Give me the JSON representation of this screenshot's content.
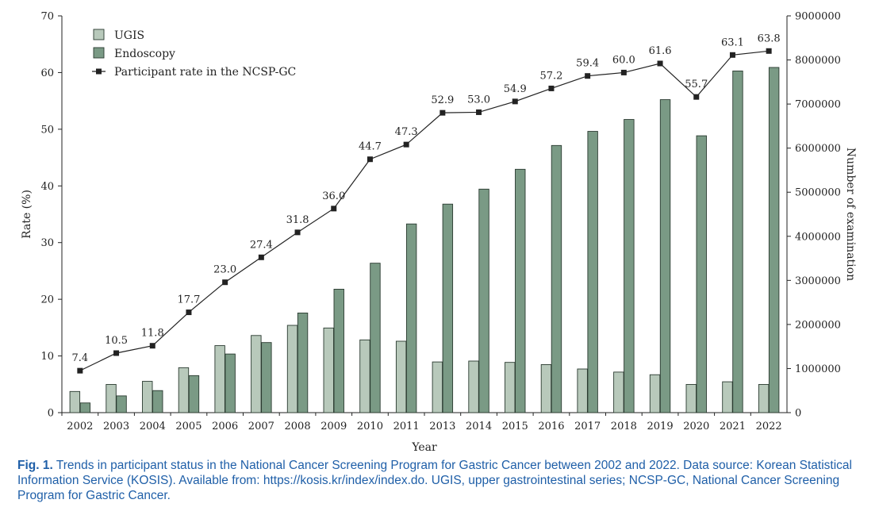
{
  "chart_data": {
    "type": "bar",
    "categories": [
      "2002",
      "2003",
      "2004",
      "2005",
      "2006",
      "2007",
      "2008",
      "2009",
      "2010",
      "2011",
      "2013",
      "2014",
      "2015",
      "2016",
      "2017",
      "2018",
      "2019",
      "2020",
      "2021",
      "2022"
    ],
    "xlabel": "Year",
    "ylabel": "Rate (%)",
    "y2label": "Number of examination",
    "ylim": [
      0,
      70
    ],
    "y2lim": [
      0,
      9000000
    ],
    "yticks": [
      "0",
      "10",
      "20",
      "30",
      "40",
      "50",
      "60",
      "70"
    ],
    "y2ticks": [
      "0",
      "1000000",
      "2000000",
      "3000000",
      "4000000",
      "5000000",
      "6000000",
      "7000000",
      "8000000",
      "9000000"
    ],
    "legend_position": "top-left",
    "series": [
      {
        "name": "UGIS",
        "kind": "bar",
        "axis": "right",
        "color": "#b8c9bb",
        "values": [
          480000,
          640000,
          710000,
          1020000,
          1520000,
          1750000,
          1980000,
          1920000,
          1650000,
          1620000,
          1150000,
          1170000,
          1140000,
          1090000,
          990000,
          920000,
          860000,
          640000,
          700000,
          640000
        ]
      },
      {
        "name": "Endoscopy",
        "kind": "bar",
        "axis": "right",
        "color": "#7a9a85",
        "values": [
          220000,
          380000,
          500000,
          840000,
          1330000,
          1590000,
          2260000,
          2800000,
          3390000,
          4280000,
          4730000,
          5070000,
          5520000,
          6060000,
          6380000,
          6650000,
          7100000,
          6280000,
          7750000,
          7830000
        ]
      },
      {
        "name": "Participant rate in the NCSP-GC",
        "kind": "line",
        "axis": "left",
        "color": "#222222",
        "values": [
          7.4,
          10.5,
          11.8,
          17.7,
          23.0,
          27.4,
          31.8,
          36.0,
          44.7,
          47.3,
          52.9,
          53.0,
          54.9,
          57.2,
          59.4,
          60.0,
          61.6,
          55.7,
          63.1,
          63.8
        ],
        "labels": [
          "7.4",
          "10.5",
          "11.8",
          "17.7",
          "23.0",
          "27.4",
          "31.8",
          "36.0",
          "44.7",
          "47.3",
          "52.9",
          "53.0",
          "54.9",
          "57.2",
          "59.4",
          "60.0",
          "61.6",
          "55.7",
          "63.1",
          "63.8"
        ]
      }
    ]
  },
  "caption": {
    "label": "Fig. 1.",
    "text": " Trends in participant status in the National Cancer Screening Program for Gastric Cancer between 2002 and 2022. Data source: Korean Statistical Information Service (KOSIS). Available from: https://kosis.kr/index/index.do. UGIS, upper gastrointestinal series; NCSP-GC, National Cancer Screening Program for Gastric Cancer."
  }
}
